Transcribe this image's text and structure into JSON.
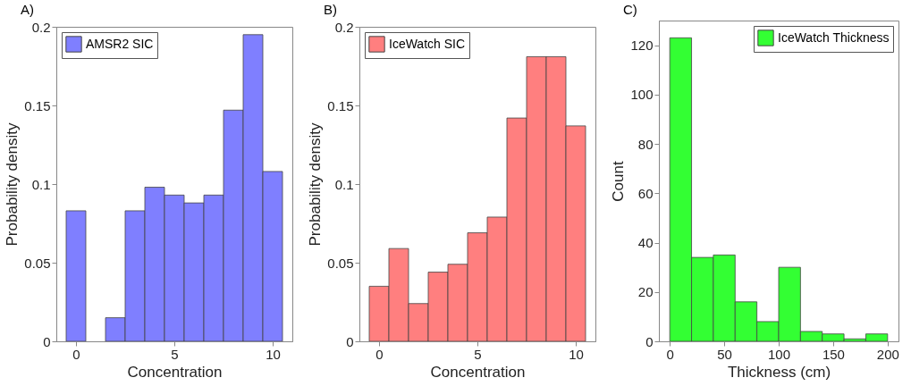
{
  "chart_data": [
    {
      "type": "histogram",
      "title": "A)",
      "xlabel": "Concentration",
      "ylabel": "Probability density",
      "bins": [
        -0.5,
        0.5,
        1.5,
        2.5,
        3.5,
        4.5,
        5.5,
        6.5,
        7.5,
        8.5,
        9.5,
        10.5
      ],
      "series": [
        {
          "name": "AMSR2 SIC",
          "color": "#7f7fff",
          "values": [
            0.083,
            0,
            0.015,
            0.083,
            0.098,
            0.093,
            0.088,
            0.093,
            0.147,
            0.195,
            0.108
          ]
        }
      ],
      "xlim": [
        -1,
        11
      ],
      "xticks": [
        0,
        5,
        10
      ],
      "ylim": [
        0,
        0.2
      ],
      "yticks": [
        0,
        0.05,
        0.1,
        0.15,
        0.2
      ],
      "legend": "top left"
    },
    {
      "type": "histogram",
      "title": "B)",
      "xlabel": "Concentration",
      "ylabel": "Probability density",
      "bins": [
        -0.5,
        0.5,
        1.5,
        2.5,
        3.5,
        4.5,
        5.5,
        6.5,
        7.5,
        8.5,
        9.5,
        10.5
      ],
      "series": [
        {
          "name": "IceWatch SIC",
          "color": "#ff7f7f",
          "values": [
            0.035,
            0.059,
            0.024,
            0.044,
            0.049,
            0.069,
            0.079,
            0.142,
            0.181,
            0.181,
            0.137
          ]
        }
      ],
      "xlim": [
        -1,
        11
      ],
      "xticks": [
        0,
        5,
        10
      ],
      "ylim": [
        0,
        0.2
      ],
      "yticks": [
        0,
        0.05,
        0.1,
        0.15,
        0.2
      ],
      "legend": "top left"
    },
    {
      "type": "histogram",
      "title": "C)",
      "xlabel": "Thickness (cm)",
      "ylabel": "Count",
      "bins": [
        0,
        20,
        40,
        60,
        80,
        100,
        120,
        140,
        160,
        180,
        200
      ],
      "series": [
        {
          "name": "IceWatch Thickness",
          "color": "#33ff33",
          "values": [
            123,
            34,
            35,
            16,
            8,
            30,
            4,
            3,
            1,
            3
          ]
        }
      ],
      "xlim": [
        -10,
        210
      ],
      "xticks": [
        0,
        50,
        100,
        150,
        200
      ],
      "ylim": [
        0,
        130
      ],
      "yticks": [
        0,
        20,
        40,
        60,
        80,
        100,
        120
      ],
      "legend": "top right"
    }
  ]
}
